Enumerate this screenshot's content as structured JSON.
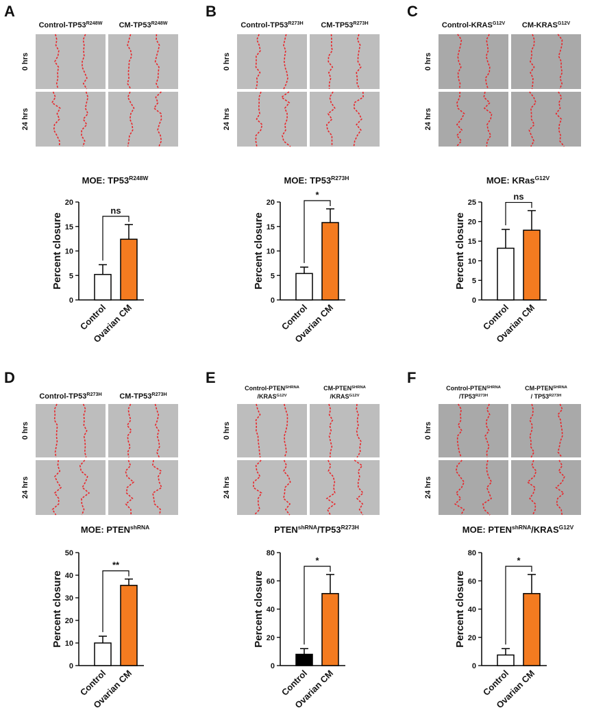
{
  "panels": [
    {
      "letter": "A",
      "columns": [
        [
          [
            {
              "t": "Control-TP53"
            },
            {
              "t": "R248W",
              "sup": true
            }
          ]
        ],
        [
          [
            {
              "t": "CM-TP53"
            },
            {
              "t": "R248W",
              "sup": true
            }
          ]
        ]
      ],
      "rows": [
        "0 hrs",
        "24 hrs"
      ]
    },
    {
      "letter": "B",
      "columns": [
        [
          [
            {
              "t": "Control-TP53"
            },
            {
              "t": "R273H",
              "sup": true
            }
          ]
        ],
        [
          [
            {
              "t": "CM-TP53"
            },
            {
              "t": "R273H",
              "sup": true
            }
          ]
        ]
      ],
      "rows": [
        "0 hrs",
        "24 hrs"
      ]
    },
    {
      "letter": "C",
      "columns": [
        [
          [
            {
              "t": "Control-KRAS"
            },
            {
              "t": "G12V",
              "sup": true
            }
          ]
        ],
        [
          [
            {
              "t": "CM-KRAS"
            },
            {
              "t": "G12V",
              "sup": true
            }
          ]
        ]
      ],
      "rows": [
        "0 hrs",
        "24 hrs"
      ]
    },
    {
      "letter": "D",
      "columns": [
        [
          [
            {
              "t": "Control-TP53"
            },
            {
              "t": "R273H",
              "sup": true
            }
          ]
        ],
        [
          [
            {
              "t": "CM-TP53"
            },
            {
              "t": "R273H",
              "sup": true
            }
          ]
        ]
      ],
      "rows": [
        "0 hrs",
        "24 hrs"
      ]
    },
    {
      "letter": "E",
      "columns": [
        [
          [
            {
              "t": "Control-PTEN"
            },
            {
              "t": "SHRNA",
              "sup": true
            }
          ],
          [
            {
              "t": "/KRAS"
            },
            {
              "t": "G12V",
              "sup": true
            }
          ]
        ],
        [
          [
            {
              "t": "CM-PTEN"
            },
            {
              "t": "SHRNA",
              "sup": true
            }
          ],
          [
            {
              "t": "/KRAS"
            },
            {
              "t": "G12V",
              "sup": true
            }
          ]
        ]
      ],
      "rows": [
        "0 hrs",
        "24 hrs"
      ]
    },
    {
      "letter": "F",
      "columns": [
        [
          [
            {
              "t": "Control-PTEN"
            },
            {
              "t": "SHRNA",
              "sup": true
            }
          ],
          [
            {
              "t": "/TP53"
            },
            {
              "t": "R273H",
              "sup": true
            }
          ]
        ],
        [
          [
            {
              "t": "CM-PTEN"
            },
            {
              "t": "SHRNA",
              "sup": true
            }
          ],
          [
            {
              "t": "/ TP53"
            },
            {
              "t": "R273H",
              "sup": true
            }
          ]
        ]
      ],
      "rows": [
        "0 hrs",
        "24 hrs"
      ]
    }
  ],
  "chart_data": [
    {
      "type": "bar",
      "title": [
        {
          "t": "MOE: TP53"
        },
        {
          "t": "R248W",
          "sup": true
        }
      ],
      "ylabel": "Percent closure",
      "categories": [
        "Control",
        "Ovarian CM"
      ],
      "values": [
        5.2,
        12.4
      ],
      "errors": [
        2,
        3
      ],
      "colors": [
        "#ffffff",
        "#f47b20"
      ],
      "ylim": [
        0,
        20
      ],
      "yticks": [
        0,
        5,
        10,
        15,
        20
      ],
      "significance": "ns"
    },
    {
      "type": "bar",
      "title": [
        {
          "t": "MOE: TP53"
        },
        {
          "t": "R273H",
          "sup": true
        }
      ],
      "ylabel": "Percent closure",
      "categories": [
        "Control",
        "Ovarian CM"
      ],
      "values": [
        5.4,
        15.8
      ],
      "errors": [
        1.3,
        2.8
      ],
      "colors": [
        "#ffffff",
        "#f47b20"
      ],
      "ylim": [
        0,
        20
      ],
      "yticks": [
        0,
        5,
        10,
        15,
        20
      ],
      "significance": "*"
    },
    {
      "type": "bar",
      "title": [
        {
          "t": "MOE: KRas"
        },
        {
          "t": "G12V",
          "sup": true
        }
      ],
      "ylabel": "Percent closure",
      "categories": [
        "Control",
        "Ovarian CM"
      ],
      "values": [
        13.2,
        17.8
      ],
      "errors": [
        4.8,
        5
      ],
      "colors": [
        "#ffffff",
        "#f47b20"
      ],
      "ylim": [
        0,
        25
      ],
      "yticks": [
        0,
        5,
        10,
        15,
        20,
        25
      ],
      "significance": "ns"
    },
    {
      "type": "bar",
      "title": [
        {
          "t": "MOE: PTEN"
        },
        {
          "t": "shRNA",
          "sup": true
        }
      ],
      "ylabel": "Percent closure",
      "categories": [
        "Control",
        "Ovarian CM"
      ],
      "values": [
        10,
        35.5
      ],
      "errors": [
        3,
        2.8
      ],
      "colors": [
        "#ffffff",
        "#f47b20"
      ],
      "ylim": [
        0,
        50
      ],
      "yticks": [
        0,
        10,
        20,
        30,
        40,
        50
      ],
      "significance": "**"
    },
    {
      "type": "bar",
      "title": [
        {
          "t": "PTEN"
        },
        {
          "t": "shRNA",
          "sup": true
        },
        {
          "t": "/TP53"
        },
        {
          "t": "R273H",
          "sup": true
        }
      ],
      "ylabel": "Percent closure",
      "categories": [
        "Control",
        "Ovarian CM"
      ],
      "values": [
        8,
        51
      ],
      "errors": [
        4,
        13.5
      ],
      "colors": [
        "#000000",
        "#f47b20"
      ],
      "ylim": [
        0,
        80
      ],
      "yticks": [
        0,
        20,
        40,
        60,
        80
      ],
      "significance": "*"
    },
    {
      "type": "bar",
      "title": [
        {
          "t": "MOE: PTEN"
        },
        {
          "t": "shRNA",
          "sup": true
        },
        {
          "t": "/KRAS"
        },
        {
          "t": "G12V",
          "sup": true
        }
      ],
      "ylabel": "Percent closure",
      "categories": [
        "Control",
        "Ovarian CM"
      ],
      "values": [
        7.5,
        51
      ],
      "errors": [
        4.5,
        13.5
      ],
      "colors": [
        "#ffffff",
        "#f47b20"
      ],
      "ylim": [
        0,
        80
      ],
      "yticks": [
        0,
        20,
        40,
        60,
        80
      ],
      "significance": "*"
    }
  ]
}
